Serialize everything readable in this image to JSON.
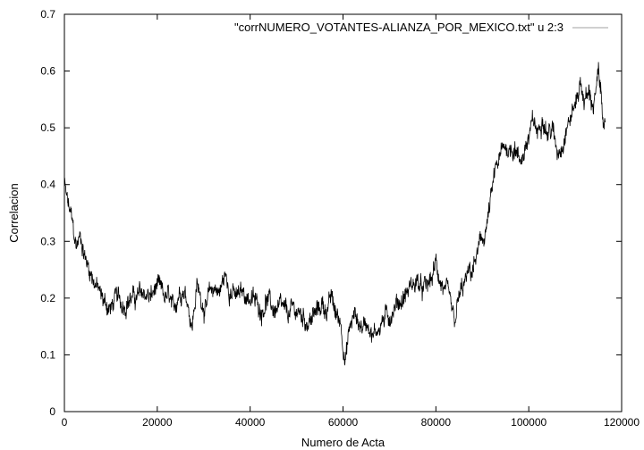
{
  "chart_data": {
    "type": "line",
    "title": "",
    "xlabel": "Numero de Acta",
    "ylabel": "Correlacion",
    "xlim": [
      0,
      120000
    ],
    "ylim": [
      0,
      0.7
    ],
    "x_ticks": [
      "0",
      "20000",
      "40000",
      "60000",
      "80000",
      "100000",
      "120000"
    ],
    "y_ticks": [
      "0",
      "0.1",
      "0.2",
      "0.3",
      "0.4",
      "0.5",
      "0.6",
      "0.7"
    ],
    "grid": false,
    "legend_position": "top-right",
    "legend_entry": "\"corrNUMERO_VOTANTES-ALIANZA_POR_MEXICO.txt\" u 2:3",
    "line_color": "#000000",
    "legend_line_color": "#a0a0a0",
    "series": [
      {
        "x": [
          0,
          600,
          1500,
          2500,
          3500,
          4500,
          5500,
          6500,
          8000,
          9000,
          10000,
          11000,
          12500,
          14000,
          15500,
          17000,
          18500,
          20000,
          21500,
          22500,
          23500,
          24500,
          25500,
          26500,
          27500,
          28500,
          29500,
          30500,
          31500,
          32500,
          33500,
          34500,
          35500,
          37000,
          38500,
          40000,
          41500,
          42500,
          43500,
          45000,
          46500,
          48000,
          49500,
          51000,
          52500,
          54000,
          55500,
          56500,
          57500,
          58500,
          59500,
          60500,
          61500,
          62500,
          64000,
          65500,
          66500,
          67500,
          68500,
          70000,
          71500,
          73000,
          74500,
          76000,
          77000,
          78000,
          79000,
          80000,
          81000,
          82000,
          83000,
          84000,
          85000,
          86000,
          87000,
          88000,
          89000,
          90000,
          91000,
          92000,
          93000,
          94000,
          95000,
          96000,
          97000,
          98000,
          99000,
          100000,
          101000,
          102000,
          103000,
          104000,
          105000,
          106000,
          107000,
          108000,
          109000,
          110000,
          111000,
          112000,
          113000,
          114000,
          115000,
          116000,
          116500
        ],
        "y": [
          0.4,
          0.37,
          0.34,
          0.29,
          0.31,
          0.27,
          0.25,
          0.23,
          0.2,
          0.19,
          0.18,
          0.2,
          0.19,
          0.2,
          0.2,
          0.21,
          0.2,
          0.22,
          0.2,
          0.2,
          0.17,
          0.21,
          0.22,
          0.2,
          0.15,
          0.22,
          0.2,
          0.18,
          0.21,
          0.22,
          0.21,
          0.24,
          0.22,
          0.2,
          0.21,
          0.2,
          0.19,
          0.18,
          0.2,
          0.18,
          0.18,
          0.17,
          0.18,
          0.17,
          0.16,
          0.17,
          0.19,
          0.18,
          0.2,
          0.17,
          0.16,
          0.09,
          0.15,
          0.17,
          0.15,
          0.16,
          0.13,
          0.15,
          0.16,
          0.17,
          0.19,
          0.2,
          0.22,
          0.23,
          0.21,
          0.22,
          0.23,
          0.26,
          0.23,
          0.21,
          0.19,
          0.15,
          0.2,
          0.22,
          0.24,
          0.25,
          0.28,
          0.3,
          0.33,
          0.38,
          0.43,
          0.45,
          0.47,
          0.46,
          0.47,
          0.44,
          0.46,
          0.48,
          0.51,
          0.49,
          0.53,
          0.49,
          0.5,
          0.46,
          0.47,
          0.5,
          0.52,
          0.54,
          0.58,
          0.55,
          0.56,
          0.54,
          0.59,
          0.53,
          0.49
        ],
        "noise_amplitude": 0.018
      }
    ]
  }
}
